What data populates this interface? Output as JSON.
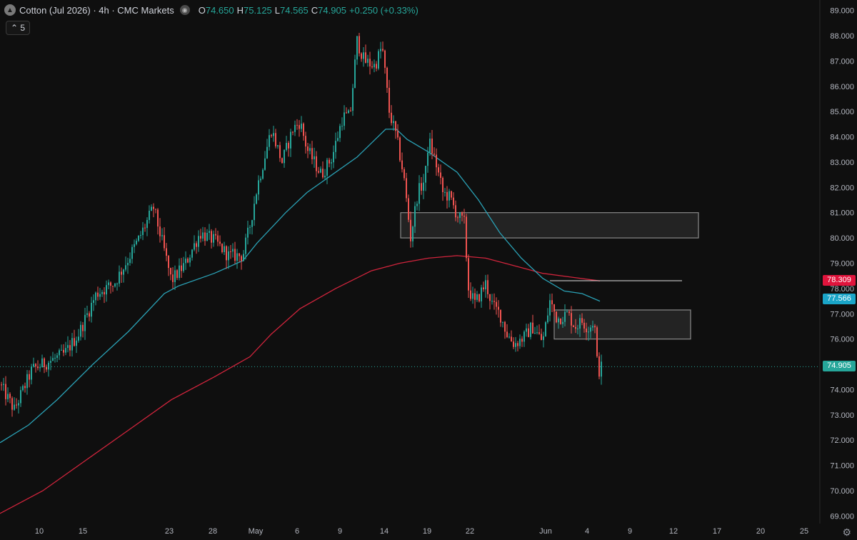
{
  "header": {
    "symbol": "Cotton (Jul 2026) · 4h · CMC Markets",
    "open_label": "O",
    "open": "74.650",
    "high_label": "H",
    "high": "75.125",
    "low_label": "L",
    "low": "74.565",
    "close_label": "C",
    "close": "74.905",
    "change": "+0.250 (+0.33%)"
  },
  "indicator_toggle": "5",
  "price_labels": {
    "red_line": "78.309",
    "teal_line": "77.566",
    "last": "74.905"
  },
  "colors": {
    "background": "#0f0f0f",
    "up": "#26a69a",
    "down": "#ef5350",
    "ma_fast": "#2aa0b4",
    "ma_slow": "#d0243c",
    "zone_fill": "#2b2b2b",
    "zone_border": "#8a8a8a"
  },
  "chart_data": {
    "type": "candlestick",
    "title": "Cotton (Jul 2026) · 4h · CMC Markets",
    "x_tick_labels": [
      "10",
      "15",
      "23",
      "28",
      "May",
      "6",
      "9",
      "14",
      "19",
      "22",
      "Jun",
      "4",
      "9",
      "12",
      "17",
      "20",
      "25"
    ],
    "y_tick_labels": [
      "89.000",
      "88.000",
      "87.000",
      "86.000",
      "85.000",
      "84.000",
      "83.000",
      "82.000",
      "81.000",
      "80.000",
      "79.000",
      "78.000",
      "77.000",
      "76.000",
      "75.000",
      "74.000",
      "73.000",
      "72.000",
      "71.000",
      "70.000",
      "69.000"
    ],
    "ylim": [
      68.7,
      89.3
    ],
    "series": [
      {
        "kind": "close_path",
        "points": [
          [
            0,
            74.2
          ],
          [
            20,
            73.2
          ],
          [
            45,
            74.8
          ],
          [
            90,
            75.4
          ],
          [
            110,
            76.2
          ],
          [
            135,
            77.8
          ],
          [
            160,
            78.2
          ],
          [
            180,
            79.2
          ],
          [
            195,
            80.0
          ],
          [
            215,
            81.2
          ],
          [
            230,
            79.5
          ],
          [
            240,
            78.3
          ],
          [
            260,
            79.0
          ],
          [
            280,
            80.2
          ],
          [
            300,
            79.9
          ],
          [
            320,
            79.3
          ],
          [
            340,
            79.3
          ],
          [
            350,
            80.5
          ],
          [
            360,
            82.0
          ],
          [
            380,
            84.3
          ],
          [
            395,
            83.0
          ],
          [
            410,
            84.3
          ],
          [
            420,
            84.6
          ],
          [
            430,
            83.5
          ],
          [
            450,
            82.5
          ],
          [
            465,
            83.2
          ],
          [
            480,
            84.8
          ],
          [
            490,
            84.8
          ],
          [
            500,
            87.8
          ],
          [
            510,
            87.0
          ],
          [
            525,
            86.8
          ],
          [
            535,
            87.6
          ],
          [
            545,
            85.0
          ],
          [
            555,
            84.0
          ],
          [
            565,
            82.5
          ],
          [
            575,
            80.0
          ],
          [
            585,
            81.8
          ],
          [
            595,
            82.3
          ],
          [
            600,
            83.9
          ],
          [
            610,
            83.0
          ],
          [
            620,
            81.8
          ],
          [
            630,
            81.6
          ],
          [
            640,
            80.9
          ],
          [
            650,
            80.6
          ],
          [
            656,
            78.0
          ],
          [
            665,
            77.4
          ],
          [
            680,
            78.2
          ],
          [
            690,
            77.3
          ],
          [
            700,
            77.0
          ],
          [
            710,
            76.2
          ],
          [
            720,
            75.8
          ],
          [
            735,
            76.1
          ],
          [
            745,
            76.5
          ],
          [
            760,
            75.9
          ],
          [
            770,
            77.5
          ],
          [
            780,
            76.8
          ],
          [
            795,
            77.0
          ],
          [
            805,
            76.5
          ],
          [
            815,
            76.7
          ],
          [
            825,
            76.4
          ],
          [
            832,
            76.8
          ],
          [
            837,
            74.7
          ],
          [
            843,
            74.9
          ]
        ]
      },
      {
        "kind": "ma_fast",
        "points": [
          [
            0,
            71.9
          ],
          [
            40,
            72.6
          ],
          [
            80,
            73.6
          ],
          [
            130,
            75.0
          ],
          [
            180,
            76.3
          ],
          [
            230,
            77.8
          ],
          [
            250,
            78.1
          ],
          [
            300,
            78.6
          ],
          [
            340,
            79.1
          ],
          [
            360,
            79.8
          ],
          [
            400,
            81.0
          ],
          [
            430,
            81.8
          ],
          [
            460,
            82.4
          ],
          [
            500,
            83.2
          ],
          [
            540,
            84.3
          ],
          [
            555,
            84.3
          ],
          [
            570,
            83.9
          ],
          [
            600,
            83.4
          ],
          [
            640,
            82.6
          ],
          [
            670,
            81.5
          ],
          [
            700,
            80.2
          ],
          [
            730,
            79.2
          ],
          [
            760,
            78.4
          ],
          [
            790,
            77.9
          ],
          [
            815,
            77.8
          ],
          [
            840,
            77.5
          ]
        ]
      },
      {
        "kind": "ma_slow",
        "points": [
          [
            0,
            69.1
          ],
          [
            60,
            70.0
          ],
          [
            120,
            71.2
          ],
          [
            180,
            72.4
          ],
          [
            240,
            73.6
          ],
          [
            300,
            74.5
          ],
          [
            350,
            75.3
          ],
          [
            380,
            76.2
          ],
          [
            420,
            77.2
          ],
          [
            470,
            78.0
          ],
          [
            520,
            78.7
          ],
          [
            560,
            79.0
          ],
          [
            600,
            79.2
          ],
          [
            640,
            79.3
          ],
          [
            680,
            79.2
          ],
          [
            720,
            78.9
          ],
          [
            760,
            78.6
          ],
          [
            800,
            78.45
          ],
          [
            840,
            78.3
          ]
        ]
      }
    ],
    "zones": [
      {
        "x_from": 561,
        "x_to": 978,
        "y_top": 81.0,
        "y_bottom": 80.0
      },
      {
        "x_from": 776,
        "x_to": 967,
        "y_top": 77.15,
        "y_bottom": 76.0
      }
    ],
    "horizontal_ray": {
      "x_from": 770,
      "x_to": 955,
      "y": 78.309
    },
    "last_price": 74.905,
    "grid": false
  }
}
